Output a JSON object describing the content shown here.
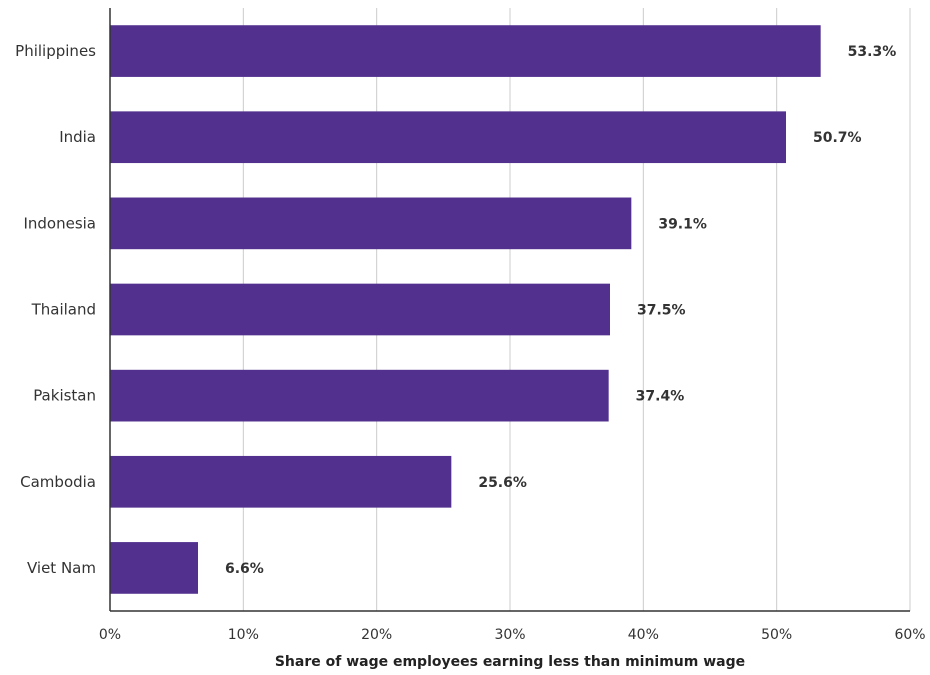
{
  "chart_data": {
    "type": "bar",
    "orientation": "horizontal",
    "categories": [
      "Philippines",
      "India",
      "Indonesia",
      "Thailand",
      "Pakistan",
      "Cambodia",
      "Viet Nam"
    ],
    "values": [
      53.3,
      50.7,
      39.1,
      37.5,
      37.4,
      25.6,
      6.6
    ],
    "value_labels": [
      "53.3%",
      "50.7%",
      "39.1%",
      "37.5%",
      "37.4%",
      "25.6%",
      "6.6%"
    ],
    "xlabel": "Share of wage employees earning less than minimum wage",
    "ylabel": "",
    "xlim": [
      0,
      60
    ],
    "xticks": [
      0,
      10,
      20,
      30,
      40,
      50,
      60
    ],
    "xtick_labels": [
      "0%",
      "10%",
      "20%",
      "30%",
      "40%",
      "50%",
      "60%"
    ],
    "grid": "vertical",
    "legend": "none",
    "bar_color": "#51308e",
    "grid_color": "#cccccc",
    "axis_color": "#333333"
  }
}
